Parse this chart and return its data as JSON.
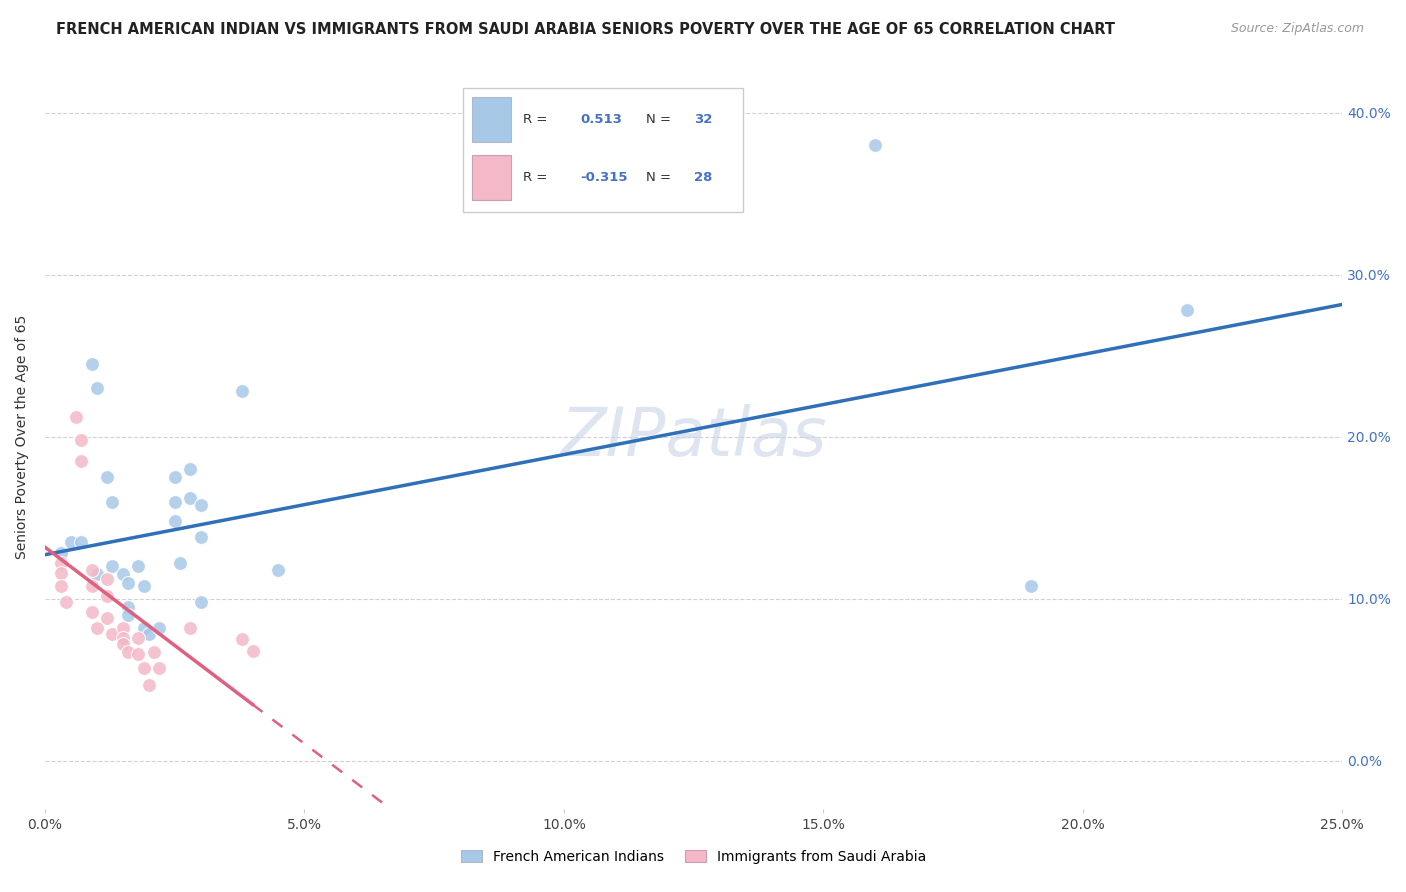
{
  "title": "FRENCH AMERICAN INDIAN VS IMMIGRANTS FROM SAUDI ARABIA SENIORS POVERTY OVER THE AGE OF 65 CORRELATION CHART",
  "source": "Source: ZipAtlas.com",
  "ylabel": "Seniors Poverty Over the Age of 65",
  "xlabel_ticks": [
    "0.0%",
    "5.0%",
    "10.0%",
    "15.0%",
    "20.0%",
    "25.0%"
  ],
  "ylabel_ticks": [
    "0.0%",
    "10.0%",
    "20.0%",
    "30.0%",
    "40.0%"
  ],
  "xlim": [
    0.0,
    0.25
  ],
  "ylim": [
    -0.03,
    0.43
  ],
  "watermark": "ZIPatlas",
  "legend1_label": "French American Indians",
  "legend2_label": "Immigrants from Saudi Arabia",
  "R1": 0.513,
  "N1": 32,
  "R2": -0.315,
  "N2": 28,
  "blue_color": "#a8c8e8",
  "pink_color": "#f4b8c8",
  "blue_line_color": "#3070b8",
  "pink_line_color": "#e06080",
  "blue_scatter": [
    [
      0.005,
      0.135
    ],
    [
      0.007,
      0.135
    ],
    [
      0.009,
      0.245
    ],
    [
      0.01,
      0.23
    ],
    [
      0.01,
      0.115
    ],
    [
      0.012,
      0.175
    ],
    [
      0.013,
      0.16
    ],
    [
      0.013,
      0.12
    ],
    [
      0.015,
      0.115
    ],
    [
      0.016,
      0.11
    ],
    [
      0.016,
      0.095
    ],
    [
      0.016,
      0.09
    ],
    [
      0.018,
      0.12
    ],
    [
      0.019,
      0.108
    ],
    [
      0.019,
      0.082
    ],
    [
      0.02,
      0.078
    ],
    [
      0.022,
      0.082
    ],
    [
      0.025,
      0.175
    ],
    [
      0.025,
      0.16
    ],
    [
      0.025,
      0.148
    ],
    [
      0.026,
      0.122
    ],
    [
      0.028,
      0.18
    ],
    [
      0.028,
      0.162
    ],
    [
      0.03,
      0.158
    ],
    [
      0.03,
      0.138
    ],
    [
      0.03,
      0.098
    ],
    [
      0.038,
      0.228
    ],
    [
      0.045,
      0.118
    ],
    [
      0.16,
      0.38
    ],
    [
      0.19,
      0.108
    ],
    [
      0.22,
      0.278
    ],
    [
      0.003,
      0.128
    ]
  ],
  "pink_scatter": [
    [
      0.003,
      0.122
    ],
    [
      0.003,
      0.116
    ],
    [
      0.003,
      0.108
    ],
    [
      0.004,
      0.098
    ],
    [
      0.006,
      0.212
    ],
    [
      0.007,
      0.198
    ],
    [
      0.007,
      0.185
    ],
    [
      0.009,
      0.118
    ],
    [
      0.009,
      0.108
    ],
    [
      0.009,
      0.092
    ],
    [
      0.01,
      0.082
    ],
    [
      0.012,
      0.112
    ],
    [
      0.012,
      0.102
    ],
    [
      0.012,
      0.088
    ],
    [
      0.013,
      0.078
    ],
    [
      0.015,
      0.082
    ],
    [
      0.015,
      0.076
    ],
    [
      0.015,
      0.072
    ],
    [
      0.016,
      0.067
    ],
    [
      0.018,
      0.076
    ],
    [
      0.018,
      0.066
    ],
    [
      0.019,
      0.057
    ],
    [
      0.02,
      0.047
    ],
    [
      0.021,
      0.067
    ],
    [
      0.022,
      0.057
    ],
    [
      0.028,
      0.082
    ],
    [
      0.038,
      0.075
    ],
    [
      0.04,
      0.068
    ]
  ],
  "blue_marker_size": 100,
  "pink_marker_size": 100,
  "grid_color": "#cccccc",
  "background_color": "#ffffff",
  "title_fontsize": 10.5,
  "source_fontsize": 9,
  "watermark_fontsize": 48,
  "watermark_color": "#c8d4e8",
  "watermark_alpha": 0.6,
  "blue_line_start_x": 0.0,
  "blue_line_end_x": 0.25,
  "pink_line_solid_start_x": 0.0,
  "pink_line_solid_end_x": 0.04,
  "pink_line_dash_end_x": 0.2
}
